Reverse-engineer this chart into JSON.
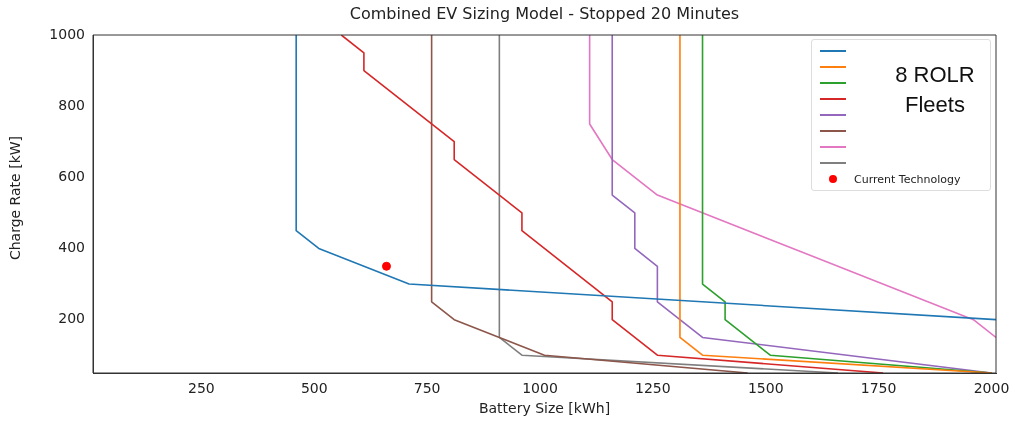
{
  "chart_data": {
    "type": "line",
    "title": "Combined EV Sizing Model - Stopped 20 Minutes",
    "xlabel": "Battery Size [kWh]",
    "ylabel": "Charge Rate [kW]",
    "xlim": [
      10,
      2010
    ],
    "ylim": [
      50,
      1000
    ],
    "xticks": [
      250,
      500,
      750,
      1000,
      1250,
      1500,
      1750,
      2000
    ],
    "yticks": [
      200,
      400,
      600,
      800,
      1000
    ],
    "grid": false,
    "legend": "top right",
    "marker": "none",
    "line_style": "solid",
    "annotations": [
      "8 ROLR Fleets"
    ],
    "series": [
      {
        "color": "#1f77b4",
        "x": [
          460,
          460,
          510,
          710,
          2010
        ],
        "values": [
          1000,
          450,
          400,
          300,
          200
        ]
      },
      {
        "color": "#ff7f0e",
        "x": [
          1310,
          1310,
          1360,
          2000
        ],
        "values": [
          1000,
          150,
          100,
          50
        ]
      },
      {
        "color": "#2ca02c",
        "x": [
          1360,
          1360,
          1410,
          1410,
          1510,
          2000
        ],
        "values": [
          1000,
          300,
          250,
          200,
          100,
          50
        ]
      },
      {
        "color": "#d62728",
        "x": [
          560,
          610,
          610,
          810,
          810,
          960,
          960,
          1160,
          1160,
          1260,
          1760
        ],
        "values": [
          1000,
          950,
          900,
          700,
          650,
          500,
          450,
          250,
          200,
          100,
          50
        ]
      },
      {
        "color": "#9467bd",
        "x": [
          1160,
          1160,
          1210,
          1210,
          1260,
          1260,
          1360,
          2000
        ],
        "values": [
          1000,
          550,
          500,
          400,
          350,
          250,
          150,
          50
        ]
      },
      {
        "color": "#8c564b",
        "x": [
          760,
          760,
          810,
          910,
          1010,
          1460
        ],
        "values": [
          1000,
          250,
          200,
          150,
          100,
          50
        ]
      },
      {
        "color": "#e377c2",
        "x": [
          1110,
          1110,
          1160,
          1260,
          1960,
          2010
        ],
        "values": [
          1000,
          750,
          650,
          550,
          200,
          150
        ]
      },
      {
        "color": "#7f7f7f",
        "x": [
          910,
          910,
          960,
          1660
        ],
        "values": [
          1000,
          150,
          100,
          50
        ]
      },
      {
        "type": "scatter",
        "name": "Current Technology",
        "color": "#ff0000",
        "marker": "circle",
        "x": [
          660
        ],
        "values": [
          350
        ]
      }
    ]
  }
}
